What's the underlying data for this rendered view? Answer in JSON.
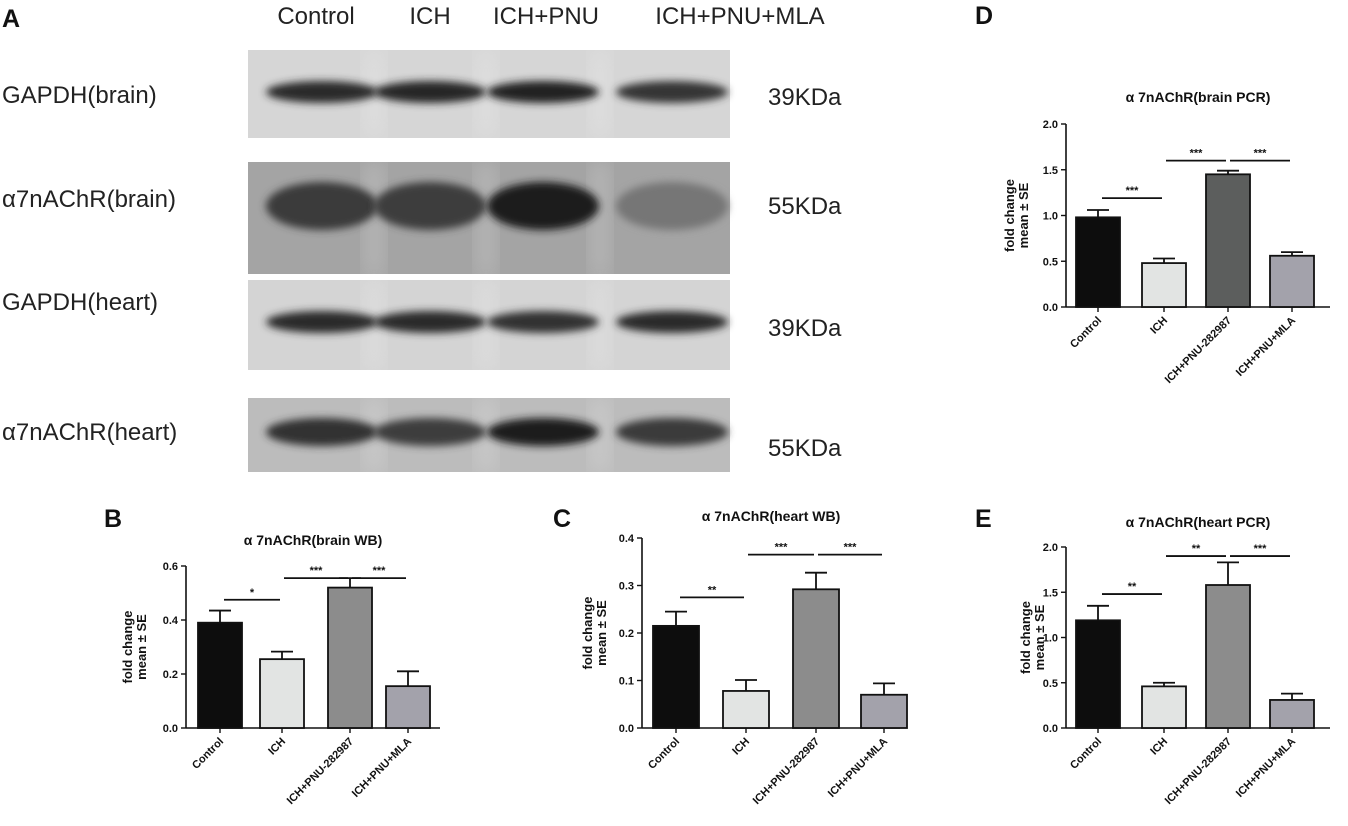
{
  "figure": {
    "panel_letters": [
      "A",
      "B",
      "C",
      "D",
      "E"
    ]
  },
  "western_blot": {
    "lanes": [
      "Control",
      "ICH",
      "ICH+PNU",
      "ICH+PNU+MLA"
    ],
    "rows": [
      {
        "label": "GAPDH(brain)",
        "size": "39KDa",
        "intensity": [
          0.85,
          0.88,
          0.92,
          0.78
        ]
      },
      {
        "label": "α7nAChR(brain)",
        "size": "55KDa",
        "intensity": [
          0.75,
          0.72,
          0.95,
          0.35
        ]
      },
      {
        "label": "GAPDH(heart)",
        "size": "39KDa",
        "intensity": [
          0.85,
          0.85,
          0.8,
          0.85
        ]
      },
      {
        "label": "α7nAChR(heart)",
        "size": "55KDa",
        "intensity": [
          0.8,
          0.72,
          0.95,
          0.75
        ]
      }
    ]
  },
  "chart_data": [
    {
      "panel": "B",
      "type": "bar",
      "title": "α 7nAChR(brain  WB)",
      "ylabel_line1": "fold change",
      "ylabel_line2": "mean ± SE",
      "categories": [
        "Control",
        "ICH",
        "ICH+PNU-282987",
        "ICH+PNU+MLA"
      ],
      "values": [
        0.39,
        0.255,
        0.52,
        0.155
      ],
      "errors": [
        0.045,
        0.028,
        0.035,
        0.055
      ],
      "bar_colors": [
        "#0d0d0d",
        "#e2e4e3",
        "#8c8c8c",
        "#a3a2ab"
      ],
      "ylim": [
        0,
        0.6
      ],
      "yticks": [
        "0.0",
        "0.2",
        "0.4",
        "0.6"
      ],
      "significance": [
        {
          "from": 0,
          "to": 1,
          "label": "*",
          "y": 0.475
        },
        {
          "from": 1,
          "to": 2,
          "label": "***",
          "y": 0.555
        },
        {
          "from": 2,
          "to": 3,
          "label": "***",
          "y": 0.555
        }
      ]
    },
    {
      "panel": "C",
      "type": "bar",
      "title": "α 7nAChR(heart  WB)",
      "ylabel_line1": "fold change",
      "ylabel_line2": "mean ± SE",
      "categories": [
        "Control",
        "ICH",
        "ICH+PNU-282987",
        "ICH+PNU+MLA"
      ],
      "values": [
        0.215,
        0.078,
        0.292,
        0.07
      ],
      "errors": [
        0.03,
        0.023,
        0.035,
        0.024
      ],
      "bar_colors": [
        "#0d0d0d",
        "#e2e4e3",
        "#8c8c8c",
        "#a3a2ab"
      ],
      "ylim": [
        0,
        0.4
      ],
      "yticks": [
        "0.0",
        "0.1",
        "0.2",
        "0.3",
        "0.4"
      ],
      "significance": [
        {
          "from": 0,
          "to": 1,
          "label": "**",
          "y": 0.275
        },
        {
          "from": 1,
          "to": 2,
          "label": "***",
          "y": 0.365
        },
        {
          "from": 2,
          "to": 3,
          "label": "***",
          "y": 0.365
        }
      ]
    },
    {
      "panel": "D",
      "type": "bar",
      "title": "α 7nAChR(brain  PCR)",
      "ylabel_line1": "fold change",
      "ylabel_line2": "mean ± SE",
      "categories": [
        "Control",
        "ICH",
        "ICH+PNU-282987",
        "ICH+PNU+MLA"
      ],
      "values": [
        0.98,
        0.48,
        1.45,
        0.56
      ],
      "errors": [
        0.08,
        0.05,
        0.04,
        0.04
      ],
      "bar_colors": [
        "#0d0d0d",
        "#e2e4e3",
        "#5c5e5d",
        "#a3a2ab"
      ],
      "ylim": [
        0,
        2.0
      ],
      "yticks": [
        "0.0",
        "0.5",
        "1.0",
        "1.5",
        "2.0"
      ],
      "significance": [
        {
          "from": 0,
          "to": 1,
          "label": "***",
          "y": 1.19
        },
        {
          "from": 1,
          "to": 2,
          "label": "***",
          "y": 1.6
        },
        {
          "from": 2,
          "to": 3,
          "label": "***",
          "y": 1.6
        }
      ]
    },
    {
      "panel": "E",
      "type": "bar",
      "title": "α 7nAChR(heart PCR)",
      "ylabel_line1": "fold change",
      "ylabel_line2": "mean ± SE",
      "categories": [
        "Control",
        "ICH",
        "ICH+PNU-282987",
        "ICH+PNU+MLA"
      ],
      "values": [
        1.19,
        0.46,
        1.58,
        0.31
      ],
      "errors": [
        0.16,
        0.04,
        0.25,
        0.07
      ],
      "bar_colors": [
        "#0d0d0d",
        "#e2e4e3",
        "#8c8c8c",
        "#a3a2ab"
      ],
      "ylim": [
        0,
        2.0
      ],
      "yticks": [
        "0.0",
        "0.5",
        "1.0",
        "1.5",
        "2.0"
      ],
      "significance": [
        {
          "from": 0,
          "to": 1,
          "label": "**",
          "y": 1.48
        },
        {
          "from": 1,
          "to": 2,
          "label": "**",
          "y": 1.9
        },
        {
          "from": 2,
          "to": 3,
          "label": "***",
          "y": 1.9
        }
      ]
    }
  ]
}
